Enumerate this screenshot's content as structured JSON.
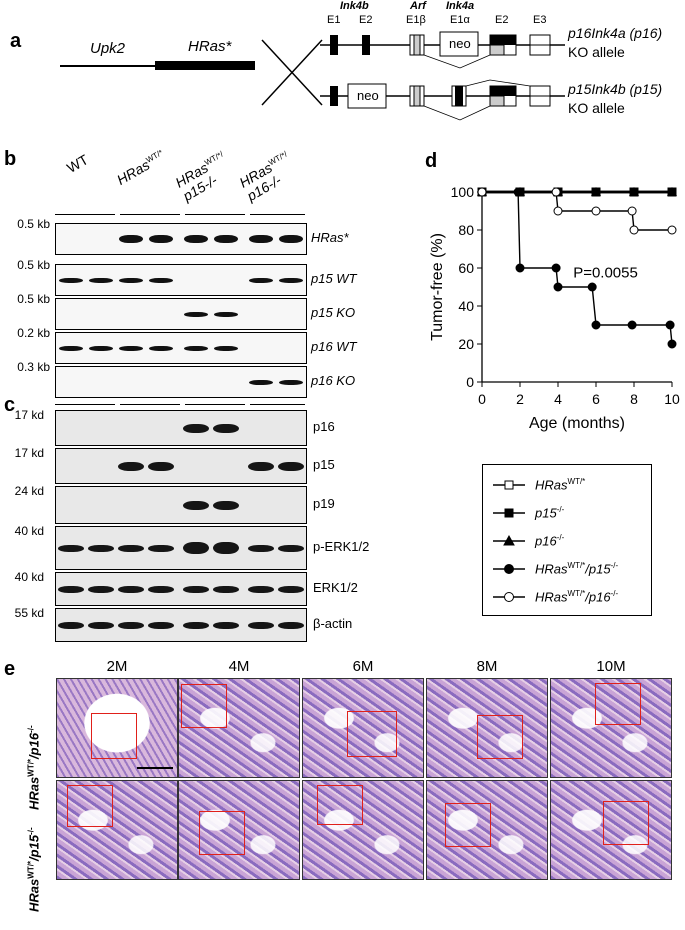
{
  "panels": [
    "a",
    "b",
    "c",
    "d",
    "e"
  ],
  "panel_a": {
    "transgene_left": "Upk2",
    "transgene_right": "HRas*",
    "locus_labels": [
      "Ink4b",
      "Arf",
      "Ink4a"
    ],
    "exon_labels": [
      "E1",
      "E2",
      "E1β",
      "E1α",
      "E2",
      "E3"
    ],
    "neo": "neo",
    "allele1_line1": "p16Ink4a (p16)",
    "allele1_line2": "KO allele",
    "allele2_line1": "p15Ink4b (p15)",
    "allele2_line2": "KO allele"
  },
  "panel_b": {
    "groups": [
      "WT",
      "HRasWT/*",
      "HRasWT/*/ p15-/-",
      "HRasWT/*/ p16-/-"
    ],
    "group_main": [
      "WT",
      "HRas",
      "HRas",
      "HRas"
    ],
    "group_sup": [
      "",
      "WT/*",
      "WT/*/",
      "WT/*/"
    ],
    "group_sub2": [
      "",
      "",
      "p15-/-",
      "p16-/-"
    ],
    "rows": [
      {
        "size": "0.5 kb",
        "label": "HRas*"
      },
      {
        "size": "0.5 kb",
        "label": "p15 WT"
      },
      {
        "size": "0.5 kb",
        "label": "p15 KO"
      },
      {
        "size": "0.2 kb",
        "label": "p16 WT"
      },
      {
        "size": "0.3 kb",
        "label": "p16 KO"
      }
    ]
  },
  "panel_c": {
    "rows": [
      {
        "size": "17 kd",
        "label": "p16"
      },
      {
        "size": "17 kd",
        "label": "p15"
      },
      {
        "size": "24 kd",
        "label": "p19"
      },
      {
        "size": "40 kd",
        "label": "p-ERK1/2"
      },
      {
        "size": "40 kd",
        "label": "ERK1/2"
      },
      {
        "size": "55 kd",
        "label": "β-actin"
      }
    ]
  },
  "chart_data": {
    "type": "line",
    "xlabel": "Age (months)",
    "ylabel": "Tumor-free (%)",
    "xlim": [
      0,
      10
    ],
    "ylim": [
      0,
      100
    ],
    "xticks": [
      0,
      2,
      4,
      6,
      8,
      10
    ],
    "yticks": [
      0,
      20,
      40,
      60,
      80,
      100
    ],
    "annotation": "P=0.0055",
    "series": [
      {
        "name": "HRasWT/*",
        "marker": "open-square",
        "x": [
          0,
          2,
          4,
          6,
          8,
          10
        ],
        "y": [
          100,
          100,
          100,
          100,
          100,
          100
        ]
      },
      {
        "name": "p15-/-",
        "marker": "filled-square",
        "x": [
          0,
          2,
          4,
          6,
          8,
          10
        ],
        "y": [
          100,
          100,
          100,
          100,
          100,
          100
        ]
      },
      {
        "name": "p16-/-",
        "marker": "filled-triangle",
        "x": [
          0,
          2,
          4,
          6,
          8,
          10
        ],
        "y": [
          100,
          100,
          100,
          100,
          100,
          100
        ]
      },
      {
        "name": "HRasWT/*/p15-/-",
        "marker": "filled-circle",
        "x": [
          0,
          1.9,
          2,
          3.9,
          4,
          5.8,
          6,
          7.9,
          9.9,
          10
        ],
        "y": [
          100,
          100,
          60,
          60,
          50,
          50,
          30,
          30,
          30,
          20
        ]
      },
      {
        "name": "HRasWT/*/p16-/-",
        "marker": "open-circle",
        "x": [
          0,
          3.9,
          4,
          6,
          7.9,
          8,
          10
        ],
        "y": [
          100,
          100,
          90,
          90,
          90,
          80,
          80
        ]
      }
    ]
  },
  "legend": [
    {
      "main": "HRas",
      "sup": "WT/*",
      "rest": ""
    },
    {
      "main": "p15",
      "sup": "-/-",
      "rest": ""
    },
    {
      "main": "p16",
      "sup": "-/-",
      "rest": ""
    },
    {
      "main": "HRas",
      "sup": "WT/*",
      "rest": "/p15",
      "sup2": "-/-"
    },
    {
      "main": "HRas",
      "sup": "WT/*",
      "rest": "/p16",
      "sup2": "-/-"
    }
  ],
  "panel_e": {
    "columns": [
      "2M",
      "4M",
      "6M",
      "8M",
      "10M"
    ],
    "row1_main": "HRas",
    "row1_sup": "WT/*",
    "row1_rest": "/p16",
    "row1_sup2": "-/-",
    "row2_main": "HRas",
    "row2_sup": "WT/*",
    "row2_rest": "/p15",
    "row2_sup2": "-/-"
  }
}
